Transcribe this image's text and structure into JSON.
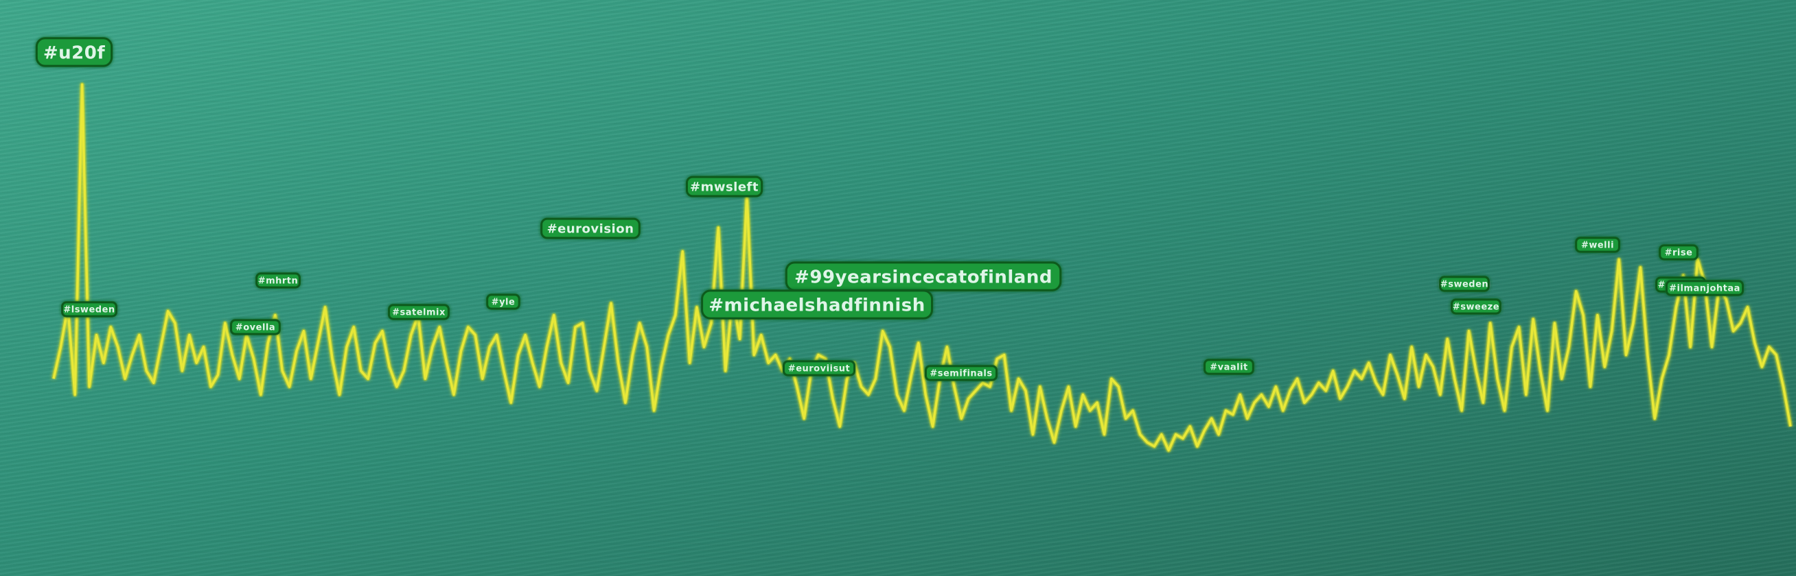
{
  "colors": {
    "background_top": "#3fa98c",
    "background_bottom": "#256f5c",
    "line": "#e8e838",
    "line_glow": "#b8c81a",
    "label_fill": "#1f9a3a",
    "label_text": "#dff5e8"
  },
  "chart_data": {
    "type": "line",
    "title": "",
    "xlabel": "",
    "ylabel": "",
    "grid": false,
    "legend": "none",
    "ylim": [
      0,
      100
    ],
    "series": [
      {
        "values": [
          22,
          30,
          40,
          18,
          96,
          20,
          33,
          26,
          35,
          30,
          22,
          28,
          33,
          24,
          21,
          30,
          39,
          36,
          24,
          33,
          26,
          30,
          20,
          23,
          36,
          28,
          22,
          33,
          27,
          18,
          31,
          38,
          24,
          20,
          29,
          34,
          22,
          31,
          40,
          27,
          18,
          30,
          35,
          24,
          22,
          31,
          34,
          25,
          20,
          24,
          33,
          38,
          22,
          30,
          35,
          26,
          18,
          29,
          35,
          33,
          22,
          30,
          33,
          24,
          16,
          28,
          33,
          26,
          20,
          30,
          38,
          26,
          21,
          35,
          36,
          24,
          19,
          30,
          41,
          26,
          16,
          28,
          36,
          30,
          14,
          25,
          33,
          38,
          54,
          26,
          40,
          30,
          36,
          60,
          24,
          43,
          32,
          68,
          28,
          33,
          26,
          28,
          24,
          27,
          20,
          12,
          24,
          28,
          27,
          17,
          10,
          22,
          26,
          20,
          18,
          22,
          34,
          30,
          18,
          14,
          23,
          31,
          18,
          10,
          22,
          30,
          20,
          12,
          17,
          19,
          21,
          20,
          27,
          28,
          14,
          22,
          19,
          8,
          20,
          12,
          6,
          14,
          20,
          10,
          18,
          14,
          16,
          8,
          22,
          20,
          12,
          14,
          8,
          6,
          5,
          8,
          4,
          8,
          7,
          10,
          5,
          9,
          12,
          8,
          14,
          13,
          18,
          12,
          16,
          18,
          15,
          20,
          14,
          19,
          22,
          16,
          18,
          21,
          19,
          24,
          17,
          20,
          24,
          22,
          26,
          21,
          18,
          28,
          23,
          17,
          30,
          20,
          28,
          25,
          18,
          32,
          22,
          14,
          34,
          24,
          16,
          36,
          22,
          14,
          30,
          35,
          18,
          37,
          24,
          14,
          36,
          22,
          30,
          44,
          38,
          20,
          38,
          25,
          34,
          52,
          28,
          36,
          50,
          28,
          12,
          22,
          28,
          40,
          48,
          30,
          52,
          46,
          30,
          45,
          42,
          34,
          36,
          40,
          31,
          25,
          30,
          28,
          20,
          10
        ],
        "color": "#e8e838"
      }
    ],
    "annotations": [
      {
        "text": "#u20f",
        "size": "large"
      },
      {
        "text": "#mwsleft",
        "size": "medium"
      },
      {
        "text": "#eurovision",
        "size": "medium"
      },
      {
        "text": "#99yearsincecatofinland",
        "size": "large"
      },
      {
        "text": "#michaelshadfinnish",
        "size": "large"
      },
      {
        "text": "#lsweden",
        "size": "small"
      },
      {
        "text": "#ovella",
        "size": "small"
      },
      {
        "text": "#satelmix",
        "size": "small"
      },
      {
        "text": "#yle",
        "size": "small"
      },
      {
        "text": "#mhrtn",
        "size": "small"
      },
      {
        "text": "#euroviisut",
        "size": "small"
      },
      {
        "text": "#semifinals",
        "size": "small"
      },
      {
        "text": "#vaalit",
        "size": "small"
      },
      {
        "text": "#sweden",
        "size": "small"
      },
      {
        "text": "#sweeze",
        "size": "small"
      },
      {
        "text": "#amsja2",
        "size": "small"
      },
      {
        "text": "#welli",
        "size": "small"
      },
      {
        "text": "#rise",
        "size": "small"
      },
      {
        "text": "#ilmanjohtaa",
        "size": "small"
      }
    ]
  }
}
